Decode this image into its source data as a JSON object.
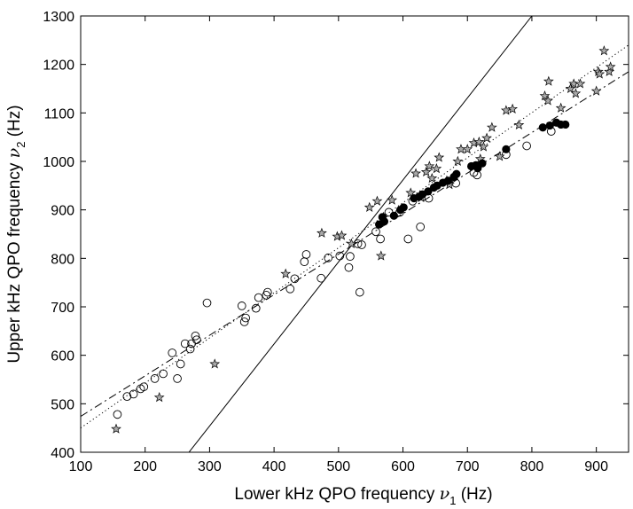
{
  "chart_data": {
    "type": "scatter",
    "title": "",
    "xlabel": {
      "main": "Lower kHz QPO frequency  ",
      "symbol": "ν",
      "sub": "1",
      "unit": " (Hz)"
    },
    "ylabel": {
      "main": "Upper kHz QPO frequency  ",
      "symbol": "ν",
      "sub": "2",
      "unit": " (Hz)"
    },
    "xlim": [
      100,
      950
    ],
    "ylim": [
      400,
      1300
    ],
    "xticks": [
      100,
      200,
      300,
      400,
      500,
      600,
      700,
      800,
      900
    ],
    "yticks": [
      400,
      500,
      600,
      700,
      800,
      900,
      1000,
      1100,
      1200,
      1300
    ],
    "grid": false,
    "series": [
      {
        "marker": "open-circle",
        "points": [
          [
            157,
            478
          ],
          [
            172,
            515
          ],
          [
            182,
            520
          ],
          [
            193,
            531
          ],
          [
            198,
            535
          ],
          [
            215,
            552
          ],
          [
            228,
            562
          ],
          [
            242,
            605
          ],
          [
            250,
            552
          ],
          [
            255,
            582
          ],
          [
            262,
            624
          ],
          [
            270,
            613
          ],
          [
            272,
            624
          ],
          [
            278,
            640
          ],
          [
            280,
            632
          ],
          [
            296,
            708
          ],
          [
            350,
            702
          ],
          [
            354,
            669
          ],
          [
            356,
            677
          ],
          [
            372,
            697
          ],
          [
            376,
            719
          ],
          [
            388,
            724
          ],
          [
            390,
            730
          ],
          [
            425,
            737
          ],
          [
            432,
            758
          ],
          [
            447,
            793
          ],
          [
            450,
            808
          ],
          [
            473,
            759
          ],
          [
            484,
            801
          ],
          [
            502,
            805
          ],
          [
            516,
            781
          ],
          [
            518,
            804
          ],
          [
            530,
            830
          ],
          [
            533,
            730
          ],
          [
            536,
            828
          ],
          [
            558,
            855
          ],
          [
            565,
            840
          ],
          [
            578,
            895
          ],
          [
            595,
            895
          ],
          [
            608,
            840
          ],
          [
            615,
            918
          ],
          [
            627,
            865
          ],
          [
            640,
            924
          ],
          [
            682,
            955
          ],
          [
            710,
            977
          ],
          [
            715,
            972
          ],
          [
            760,
            1014
          ],
          [
            792,
            1032
          ],
          [
            830,
            1062
          ]
        ]
      },
      {
        "marker": "star",
        "points": [
          [
            155,
            448
          ],
          [
            222,
            513
          ],
          [
            308,
            582
          ],
          [
            418,
            768
          ],
          [
            474,
            852
          ],
          [
            498,
            845
          ],
          [
            505,
            847
          ],
          [
            520,
            830
          ],
          [
            548,
            905
          ],
          [
            560,
            918
          ],
          [
            566,
            805
          ],
          [
            570,
            885
          ],
          [
            583,
            920
          ],
          [
            612,
            935
          ],
          [
            620,
            975
          ],
          [
            628,
            925
          ],
          [
            636,
            978
          ],
          [
            641,
            990
          ],
          [
            645,
            965
          ],
          [
            652,
            985
          ],
          [
            656,
            1008
          ],
          [
            668,
            960
          ],
          [
            672,
            952
          ],
          [
            685,
            1000
          ],
          [
            690,
            1025
          ],
          [
            700,
            1025
          ],
          [
            710,
            1038
          ],
          [
            718,
            1040
          ],
          [
            720,
            1005
          ],
          [
            725,
            1030
          ],
          [
            730,
            1048
          ],
          [
            738,
            1070
          ],
          [
            750,
            1010
          ],
          [
            760,
            1105
          ],
          [
            770,
            1108
          ],
          [
            780,
            1075
          ],
          [
            820,
            1135
          ],
          [
            825,
            1125
          ],
          [
            826,
            1165
          ],
          [
            845,
            1110
          ],
          [
            860,
            1150
          ],
          [
            865,
            1160
          ],
          [
            868,
            1140
          ],
          [
            875,
            1160
          ],
          [
            900,
            1145
          ],
          [
            903,
            1185
          ],
          [
            905,
            1180
          ],
          [
            912,
            1228
          ],
          [
            920,
            1185
          ],
          [
            922,
            1195
          ]
        ]
      },
      {
        "marker": "filled-circle",
        "points": [
          [
            563,
            870
          ],
          [
            568,
            885
          ],
          [
            571,
            876
          ],
          [
            586,
            888
          ],
          [
            596,
            900
          ],
          [
            601,
            905
          ],
          [
            617,
            924
          ],
          [
            625,
            927
          ],
          [
            630,
            932
          ],
          [
            639,
            938
          ],
          [
            648,
            946
          ],
          [
            653,
            950
          ],
          [
            662,
            956
          ],
          [
            670,
            960
          ],
          [
            679,
            968
          ],
          [
            683,
            974
          ],
          [
            706,
            990
          ],
          [
            713,
            992
          ],
          [
            716,
            986
          ],
          [
            723,
            996
          ],
          [
            760,
            1025
          ],
          [
            817,
            1070
          ],
          [
            828,
            1074
          ],
          [
            838,
            1080
          ],
          [
            845,
            1076
          ],
          [
            852,
            1076
          ]
        ]
      }
    ],
    "lines": [
      {
        "style": "solid",
        "from": [
          268,
          400
        ],
        "to": [
          800,
          1300
        ]
      },
      {
        "style": "dashdot",
        "from": [
          100,
          474
        ],
        "to": [
          950,
          1185
        ]
      },
      {
        "style": "dotted",
        "from": [
          100,
          450
        ],
        "to": [
          950,
          1240
        ]
      }
    ]
  }
}
